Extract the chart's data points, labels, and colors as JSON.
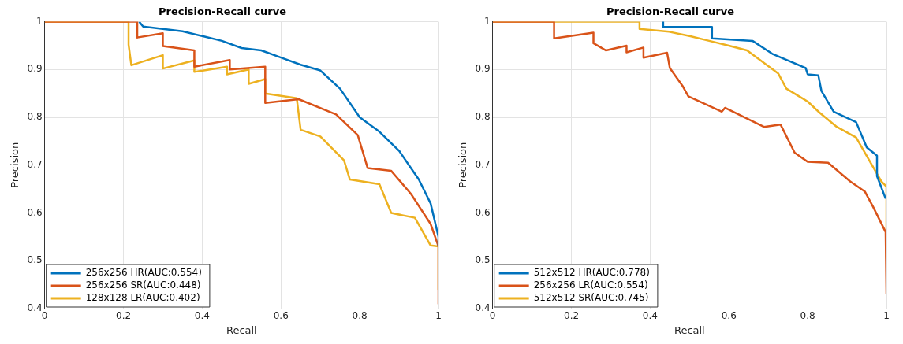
{
  "chart_data": [
    {
      "type": "line",
      "title": "Precision-Recall curve",
      "xlabel": "Recall",
      "ylabel": "Precision",
      "xlim": [
        0,
        1
      ],
      "ylim": [
        0.4,
        1
      ],
      "xticks": [
        0,
        0.2,
        0.4,
        0.6,
        0.8,
        1
      ],
      "yticks": [
        0.4,
        0.5,
        0.6,
        0.7,
        0.8,
        0.9,
        1
      ],
      "grid": true,
      "legend": "bottom left",
      "marker": "none",
      "line_style": "solid",
      "series": [
        {
          "name": "256x256 HR(AUC:0.554)",
          "color": "#0072bd",
          "x": [
            0.24,
            0.25,
            0.3,
            0.35,
            0.4,
            0.45,
            0.5,
            0.55,
            0.6,
            0.65,
            0.7,
            0.75,
            0.8,
            0.85,
            0.9,
            0.93,
            0.95,
            0.98,
            1,
            1
          ],
          "values": [
            1,
            0.99,
            0.985,
            0.98,
            0.97,
            0.96,
            0.945,
            0.94,
            0.925,
            0.91,
            0.898,
            0.86,
            0.8,
            0.77,
            0.73,
            0.694,
            0.67,
            0.62,
            0.55,
            0.53
          ]
        },
        {
          "name": "256x256 SR(AUC:0.448)",
          "color": "#d95319",
          "x": [
            0,
            0.235,
            0.235,
            0.3,
            0.3,
            0.38,
            0.38,
            0.47,
            0.47,
            0.56,
            0.56,
            0.645,
            0.74,
            0.795,
            0.82,
            0.88,
            0.93,
            0.98,
            1,
            1
          ],
          "values": [
            1,
            1,
            0.967,
            0.976,
            0.949,
            0.94,
            0.906,
            0.92,
            0.9,
            0.906,
            0.83,
            0.838,
            0.806,
            0.763,
            0.694,
            0.688,
            0.64,
            0.577,
            0.53,
            0.41
          ]
        },
        {
          "name": "128x128 LR(AUC:0.402)",
          "color": "#edb120",
          "x": [
            0,
            0.213,
            0.213,
            0.22,
            0.3,
            0.3,
            0.38,
            0.38,
            0.463,
            0.463,
            0.518,
            0.518,
            0.56,
            0.56,
            0.64,
            0.65,
            0.7,
            0.76,
            0.775,
            0.85,
            0.88,
            0.94,
            0.98,
            1,
            1
          ],
          "values": [
            1,
            1,
            0.952,
            0.909,
            0.93,
            0.902,
            0.919,
            0.895,
            0.906,
            0.89,
            0.9,
            0.87,
            0.88,
            0.85,
            0.84,
            0.774,
            0.76,
            0.71,
            0.67,
            0.66,
            0.6,
            0.59,
            0.532,
            0.53,
            0.44
          ]
        }
      ]
    },
    {
      "type": "line",
      "title": "Precision-Recall curve",
      "xlabel": "Recall",
      "ylabel": "Precision",
      "xlim": [
        0,
        1
      ],
      "ylim": [
        0.4,
        1
      ],
      "xticks": [
        0,
        0.2,
        0.4,
        0.6,
        0.8,
        1
      ],
      "yticks": [
        0.4,
        0.5,
        0.6,
        0.7,
        0.8,
        0.9,
        1
      ],
      "grid": true,
      "legend": "bottom left",
      "marker": "none",
      "line_style": "solid",
      "series": [
        {
          "name": "512x512 HR(AUC:0.778)",
          "color": "#0072bd",
          "x": [
            0.433,
            0.433,
            0.557,
            0.557,
            0.66,
            0.71,
            0.795,
            0.8,
            0.827,
            0.835,
            0.866,
            0.923,
            0.95,
            0.976,
            0.976,
            0.998
          ],
          "values": [
            1,
            0.989,
            0.989,
            0.965,
            0.96,
            0.933,
            0.903,
            0.89,
            0.888,
            0.855,
            0.812,
            0.79,
            0.737,
            0.72,
            0.677,
            0.63
          ]
        },
        {
          "name": "256x256 LR(AUC:0.554)",
          "color": "#d95319",
          "x": [
            0,
            0.156,
            0.156,
            0.256,
            0.256,
            0.288,
            0.34,
            0.34,
            0.383,
            0.383,
            0.443,
            0.45,
            0.482,
            0.497,
            0.582,
            0.59,
            0.689,
            0.731,
            0.767,
            0.8,
            0.852,
            0.908,
            0.945,
            0.966,
            0.998,
            1
          ],
          "values": [
            1,
            1,
            0.965,
            0.977,
            0.955,
            0.94,
            0.95,
            0.936,
            0.946,
            0.925,
            0.935,
            0.903,
            0.866,
            0.844,
            0.812,
            0.82,
            0.78,
            0.785,
            0.726,
            0.707,
            0.705,
            0.666,
            0.645,
            0.613,
            0.56,
            0.43
          ]
        },
        {
          "name": "512x512 SR(AUC:0.745)",
          "color": "#edb120",
          "x": [
            0,
            0.373,
            0.373,
            0.448,
            0.5,
            0.55,
            0.6,
            0.646,
            0.725,
            0.746,
            0.8,
            0.83,
            0.874,
            0.923,
            0.96,
            0.987,
            1,
            1
          ],
          "values": [
            1,
            1,
            0.985,
            0.979,
            0.97,
            0.96,
            0.95,
            0.94,
            0.892,
            0.86,
            0.833,
            0.81,
            0.78,
            0.758,
            0.705,
            0.666,
            0.655,
            0.505
          ]
        }
      ]
    }
  ]
}
